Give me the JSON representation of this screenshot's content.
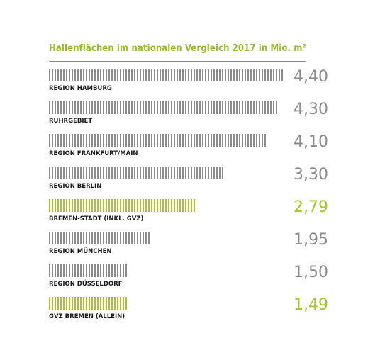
{
  "chart_data": {
    "type": "bar",
    "orientation": "horizontal",
    "title": "Hallenflächen im nationalen Vergleich 2017 in Mio. m²",
    "categories": [
      "REGION HAMBURG",
      "RUHRGEBIET",
      "REGION FRANKFURT/MAIN",
      "REGION BERLIN",
      "BREMEN-STADT (INKL. GVZ)",
      "REGION MÜNCHEN",
      "REGION DÜSSELDORF",
      "GVZ BREMEN (ALLEIN)"
    ],
    "values": [
      4.4,
      4.3,
      4.1,
      3.3,
      2.79,
      1.95,
      1.5,
      1.49
    ],
    "value_labels": [
      "4,40",
      "4,30",
      "4,10",
      "3,30",
      "2,79",
      "1,95",
      "1,50",
      "1,49"
    ],
    "highlight": [
      false,
      false,
      false,
      false,
      true,
      false,
      false,
      true
    ],
    "grid": false,
    "legend": "none"
  },
  "colors": {
    "title": "#9ab92f",
    "bar_default": "#8c8c8c",
    "bar_highlight": "#a8c23a",
    "value_default": "#8c8c8c",
    "value_highlight": "#a8c23a",
    "category_label": "#1a1a1a",
    "rule": "#8a8a8a"
  }
}
